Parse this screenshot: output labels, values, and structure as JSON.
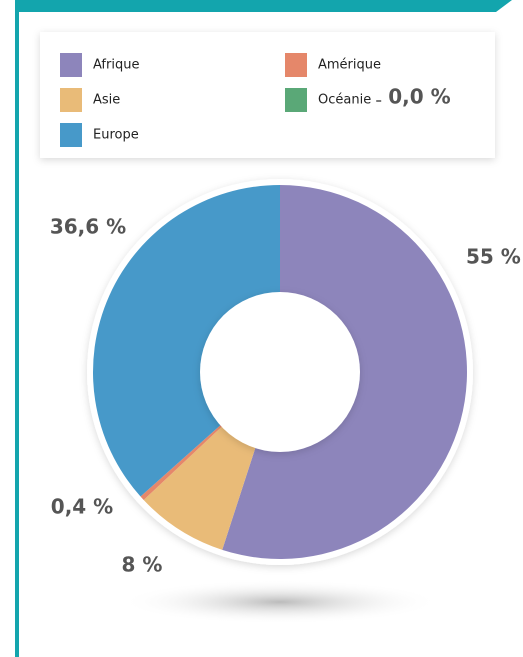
{
  "chart_data": {
    "type": "donut",
    "categories": [
      "Afrique",
      "Asie",
      "Amérique",
      "Océanie",
      "Europe"
    ],
    "values": [
      55,
      8,
      0.4,
      0.0,
      36.6
    ],
    "value_labels": [
      "55 %",
      "8 %",
      "0,4 %",
      "0,0 %",
      "36,6 %"
    ],
    "colors": [
      "#8d85bb",
      "#e9bb78",
      "#e5876a",
      "#5aa877",
      "#4799c9"
    ]
  }
}
